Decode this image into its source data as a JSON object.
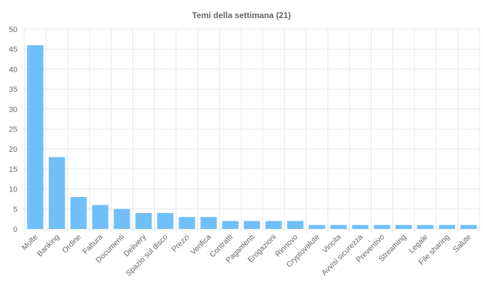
{
  "chart_data": {
    "type": "bar",
    "title": "Temi della settimana (21)",
    "xlabel": "",
    "ylabel": "",
    "ylim": [
      0,
      50
    ],
    "yticks": [
      0,
      5,
      10,
      15,
      20,
      25,
      30,
      35,
      40,
      45,
      50
    ],
    "grid": true,
    "legend": "none",
    "bar_color": "#70bff9",
    "grid_color": "#e6e6e6",
    "categories": [
      "Multe",
      "Banking",
      "Ordine",
      "Fattura",
      "Documenti",
      "Delivery",
      "Spazio sul disco",
      "Prezzi",
      "Verifica",
      "Contratti",
      "Pagamenti",
      "Erogazioni",
      "Rinnovo",
      "Cryptovalute",
      "Vincita",
      "Avvisi sicurezza",
      "Preventivo",
      "Streaming",
      "Legale",
      "File sharing",
      "Salute"
    ],
    "values": [
      46,
      18,
      8,
      6,
      5,
      4,
      4,
      3,
      3,
      2,
      2,
      2,
      2,
      1,
      1,
      1,
      1,
      1,
      1,
      1,
      1
    ]
  }
}
